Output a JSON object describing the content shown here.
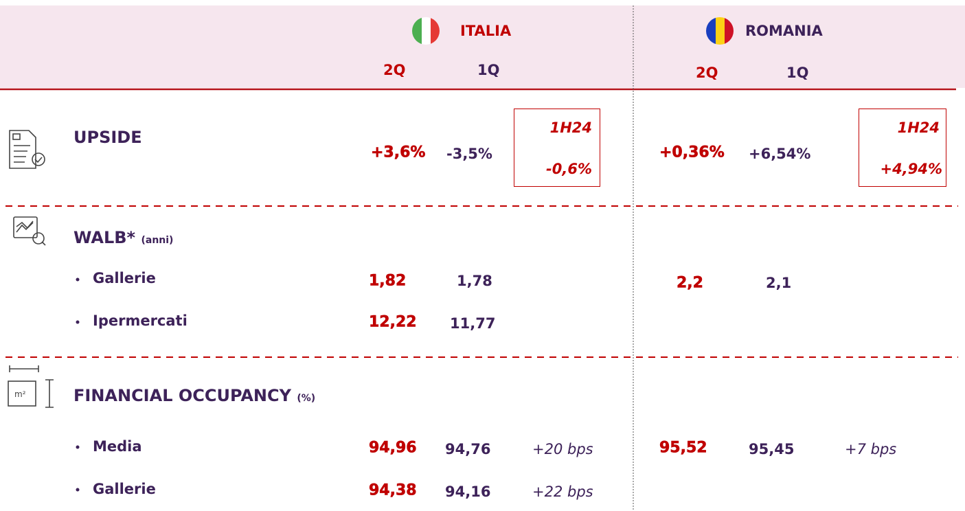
{
  "header": {
    "italia": "ITALIA",
    "romania": "ROMANIA",
    "italia_cols": [
      "2Q",
      "1Q"
    ],
    "romania_cols": [
      "2Q",
      "1Q"
    ]
  },
  "upside": {
    "label": "UPSIDE",
    "italia": [
      "+3,6%",
      "-3,5%"
    ],
    "italia_total": {
      "label": "1H24",
      "value": "-0,6%"
    },
    "romania": [
      "+0,36%",
      "+6,54%"
    ],
    "romania_total": {
      "label": "1H24",
      "value": "+4,94%"
    }
  },
  "walb": {
    "label": "WALB*",
    "unit": "(anni)",
    "items": [
      {
        "label": "Gallerie",
        "italia": [
          "1,82",
          "1,78"
        ],
        "romania": [
          "2,2",
          "2,1"
        ]
      },
      {
        "label": "Ipermercati",
        "italia": [
          "12,22",
          "11,77"
        ]
      }
    ]
  },
  "occupancy": {
    "label": "FINANCIAL OCCUPANCY",
    "unit": "(%)",
    "items": [
      {
        "label": "Media",
        "italia": [
          "94,96",
          "94,76"
        ],
        "italia_delta": "+20 bps",
        "romania": [
          "95,52",
          "95,45"
        ],
        "romania_delta": "+7 bps"
      },
      {
        "label": "Gallerie",
        "italia": [
          "94,38",
          "94,16"
        ],
        "italia_delta": "+22 bps"
      }
    ]
  }
}
